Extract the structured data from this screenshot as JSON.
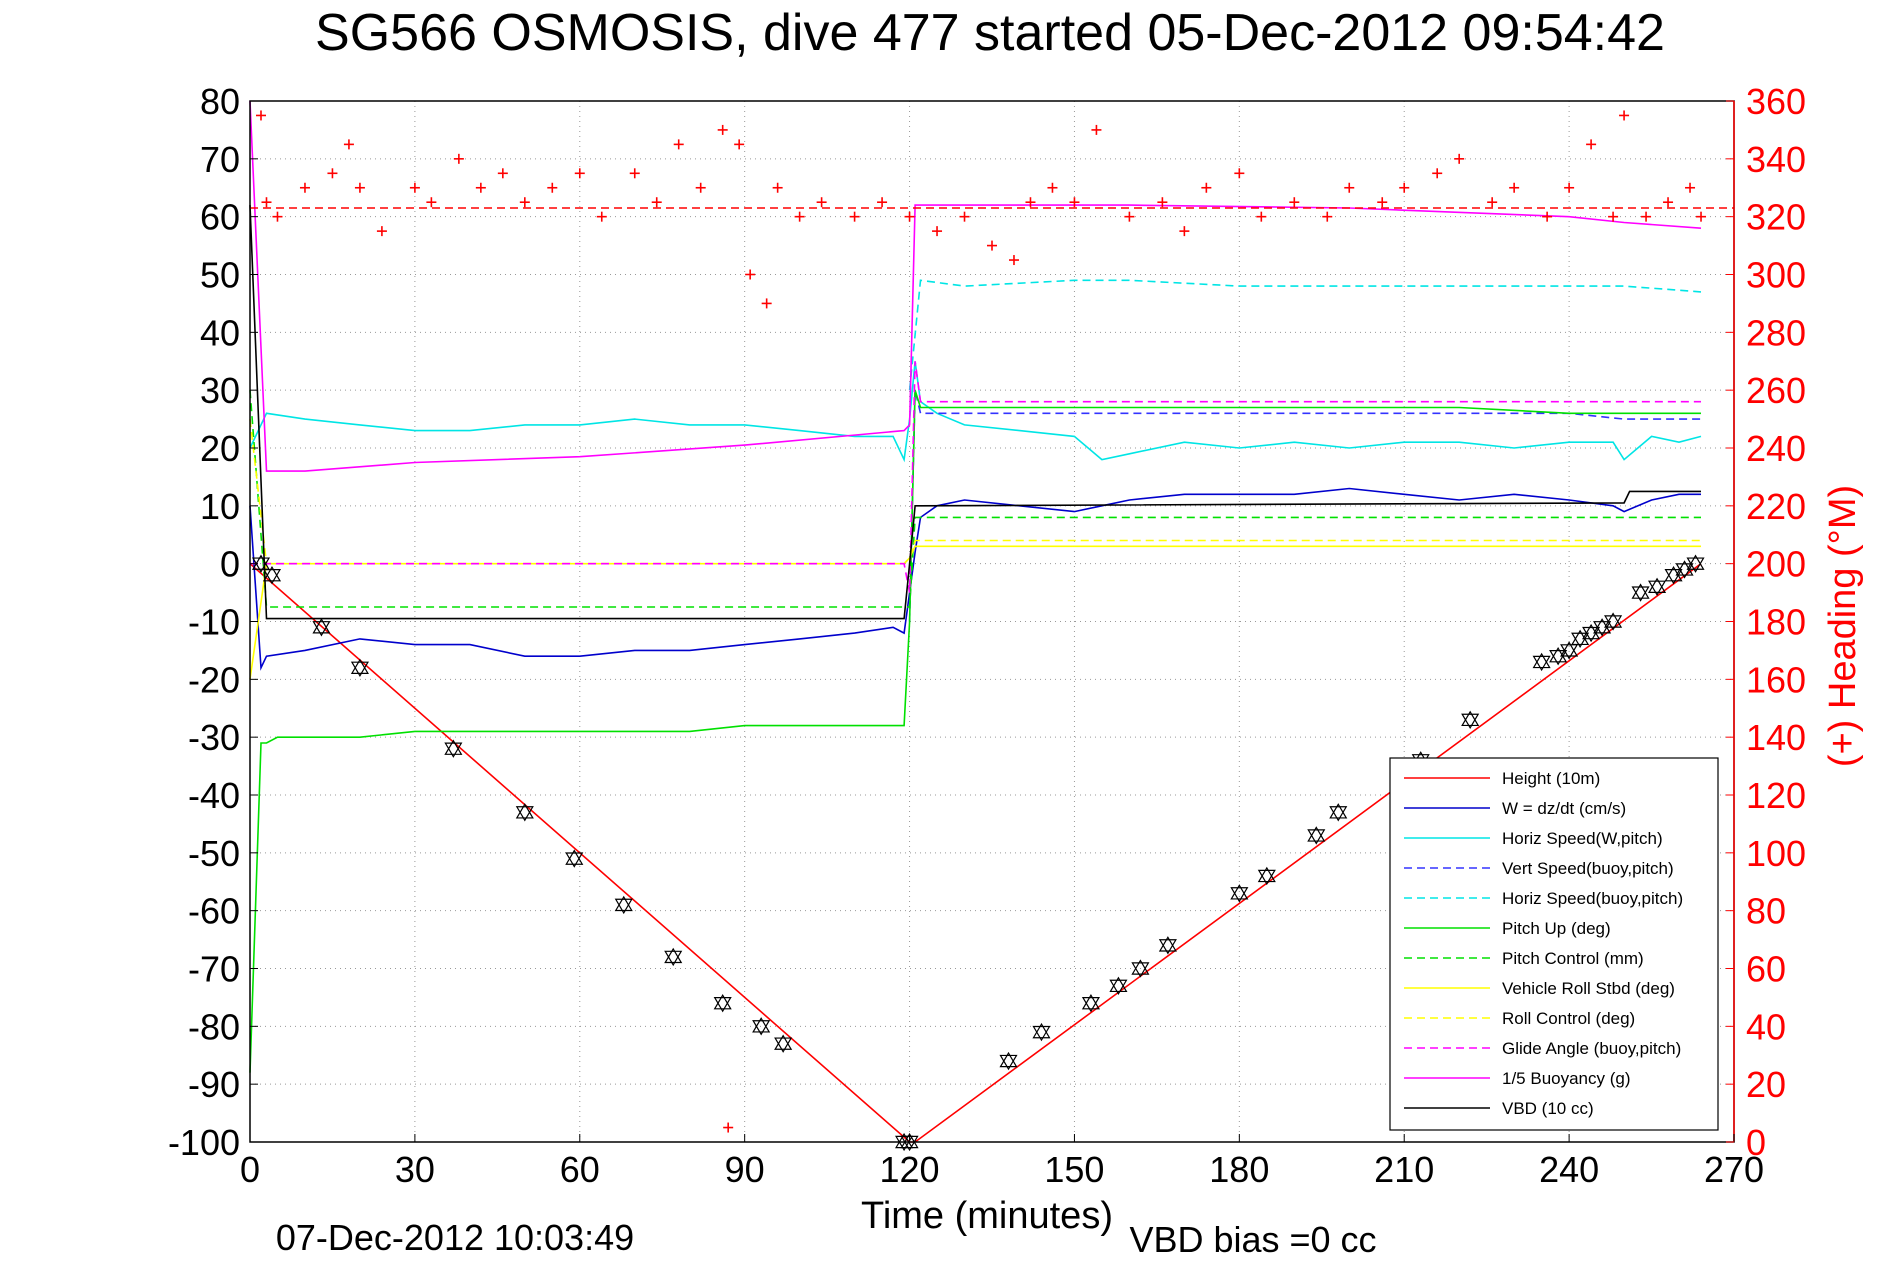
{
  "chart_data": {
    "type": "line",
    "title": "SG566 OSMOSIS, dive 477 started 05-Dec-2012 09:54:42",
    "xlabel": "Time (minutes)",
    "ylabel_right": "(+) Heading (°M)",
    "footer_left": "07-Dec-2012 10:03:49",
    "footer_right": "VBD bias =0 cc",
    "xlim": [
      0,
      270
    ],
    "ylim": [
      -100,
      80
    ],
    "ylim_right": [
      0,
      360
    ],
    "x_ticks": [
      0,
      30,
      60,
      90,
      120,
      150,
      180,
      210,
      240,
      270
    ],
    "y_ticks": [
      -100,
      -90,
      -80,
      -70,
      -60,
      -50,
      -40,
      -30,
      -20,
      -10,
      0,
      10,
      20,
      30,
      40,
      50,
      60,
      70,
      80
    ],
    "y_ticks_right": [
      0,
      20,
      40,
      60,
      80,
      100,
      120,
      140,
      160,
      180,
      200,
      220,
      240,
      260,
      280,
      300,
      320,
      340,
      360
    ],
    "grid": true,
    "legend_position": "bottom-right",
    "colors": {
      "red": "#ff0000",
      "blue": "#0000cc",
      "cyan": "#00e5e5",
      "green": "#00e000",
      "yellow": "#ffff00",
      "magenta": "#ff00ff",
      "black": "#000000"
    },
    "series": [
      {
        "name": "Height (10m)",
        "color": "#ff0000",
        "dash": false,
        "x": [
          0,
          120,
          121,
          264
        ],
        "y": [
          0,
          -100,
          -100,
          0
        ]
      },
      {
        "name": "W = dz/dt (cm/s)",
        "color": "#0000cc",
        "dash": false,
        "x": [
          0,
          2,
          3,
          10,
          20,
          30,
          40,
          50,
          60,
          70,
          80,
          90,
          100,
          110,
          117,
          119,
          120,
          121,
          122,
          125,
          130,
          140,
          150,
          155,
          160,
          170,
          180,
          190,
          200,
          210,
          220,
          230,
          240,
          248,
          250,
          255,
          260,
          264
        ],
        "y": [
          10,
          -18,
          -16,
          -15,
          -13,
          -14,
          -14,
          -16,
          -16,
          -15,
          -15,
          -14,
          -13,
          -12,
          -11,
          -12,
          -5,
          2,
          8,
          10,
          11,
          10,
          9,
          10,
          11,
          12,
          12,
          12,
          13,
          12,
          11,
          12,
          11,
          10,
          9,
          11,
          12,
          12
        ]
      },
      {
        "name": "Horiz Speed(W,pitch)",
        "color": "#00e5e5",
        "dash": false,
        "x": [
          0,
          3,
          10,
          20,
          30,
          40,
          50,
          60,
          70,
          80,
          90,
          100,
          110,
          117,
          119,
          120,
          121,
          122,
          125,
          130,
          140,
          150,
          155,
          160,
          170,
          180,
          190,
          200,
          210,
          220,
          230,
          240,
          248,
          250,
          255,
          260,
          264
        ],
        "y": [
          20,
          26,
          25,
          24,
          23,
          23,
          24,
          24,
          25,
          24,
          24,
          23,
          22,
          22,
          18,
          25,
          35,
          28,
          26,
          24,
          23,
          22,
          18,
          19,
          21,
          20,
          21,
          20,
          21,
          21,
          20,
          21,
          21,
          18,
          22,
          21,
          22
        ]
      },
      {
        "name": "Vert Speed(buoy,pitch)",
        "color": "#3333ff",
        "dash": true,
        "x": [
          120,
          121,
          122,
          130,
          150,
          160,
          180,
          200,
          220,
          240,
          250,
          255,
          264
        ],
        "y": [
          -10,
          30,
          26,
          26,
          26,
          26,
          26,
          26,
          26,
          26,
          25,
          25,
          25
        ]
      },
      {
        "name": "Horiz Speed(buoy,pitch)",
        "color": "#00e5e5",
        "dash": true,
        "x": [
          120,
          122,
          130,
          150,
          160,
          180,
          200,
          220,
          240,
          250,
          264
        ],
        "y": [
          30,
          49,
          48,
          49,
          49,
          48,
          48,
          48,
          48,
          48,
          47
        ]
      },
      {
        "name": "Pitch Up (deg)",
        "color": "#00e000",
        "dash": false,
        "x": [
          0,
          2,
          3,
          5,
          10,
          20,
          30,
          40,
          50,
          60,
          70,
          80,
          90,
          100,
          110,
          119,
          120,
          121,
          122,
          125,
          140,
          160,
          180,
          200,
          220,
          240,
          250,
          260,
          264
        ],
        "y": [
          -88,
          -31,
          -31,
          -30,
          -30,
          -30,
          -29,
          -29,
          -29,
          -29,
          -29,
          -29,
          -28,
          -28,
          -28,
          -28,
          -10,
          30,
          27,
          27,
          27,
          27,
          27,
          27,
          27,
          26,
          26,
          26,
          26
        ]
      },
      {
        "name": "Pitch Control (mm)",
        "color": "#00e000",
        "dash": true,
        "x": [
          0,
          3,
          119,
          120,
          121,
          264
        ],
        "y": [
          30,
          -7.5,
          -7.5,
          -7.5,
          8,
          8
        ]
      },
      {
        "name": "Vehicle Roll Stbd (deg)",
        "color": "#ffff00",
        "dash": false,
        "x": [
          0,
          3,
          119,
          120,
          121,
          264
        ],
        "y": [
          -20,
          0,
          0,
          1,
          3,
          3
        ]
      },
      {
        "name": "Roll Control (deg)",
        "color": "#ffff00",
        "dash": true,
        "x": [
          0,
          3,
          119,
          120,
          121,
          264
        ],
        "y": [
          25,
          0,
          0,
          1,
          4,
          4
        ]
      },
      {
        "name": "Glide Angle (buoy,pitch)",
        "color": "#ff00ff",
        "dash": true,
        "x": [
          0,
          3,
          119,
          120,
          121,
          122,
          264
        ],
        "y": [
          0,
          0,
          0,
          -5,
          35,
          28,
          28
        ]
      },
      {
        "name": "1/5 Buoyancy (g)",
        "color": "#ff00ff",
        "dash": false,
        "x": [
          0,
          3,
          10,
          30,
          60,
          90,
          119,
          120,
          121,
          130,
          160,
          200,
          240,
          250,
          264
        ],
        "y": [
          80,
          16,
          16,
          17.5,
          18.5,
          20.5,
          23,
          24,
          62,
          62,
          62,
          61.5,
          60,
          59,
          58
        ]
      },
      {
        "name": "VBD (10 cc)",
        "color": "#000000",
        "dash": false,
        "x": [
          0,
          3,
          119,
          120,
          121,
          122,
          250,
          251,
          264
        ],
        "y": [
          62,
          -9.5,
          -9.5,
          0,
          10,
          10,
          10.5,
          12.5,
          12.5
        ]
      }
    ],
    "heading": {
      "name": "(+) Heading (°M)",
      "color": "#ff0000",
      "mean": 323,
      "x": [
        2,
        3,
        5,
        10,
        15,
        18,
        20,
        24,
        30,
        33,
        38,
        42,
        46,
        50,
        55,
        60,
        64,
        70,
        74,
        78,
        82,
        86,
        87,
        89,
        91,
        94,
        96,
        100,
        104,
        110,
        115,
        120,
        125,
        130,
        135,
        139,
        142,
        146,
        150,
        154,
        160,
        166,
        170,
        174,
        180,
        184,
        190,
        196,
        200,
        206,
        210,
        216,
        220,
        226,
        230,
        236,
        240,
        244,
        248,
        250,
        254,
        258,
        262,
        264
      ],
      "y": [
        355,
        325,
        320,
        330,
        335,
        345,
        330,
        315,
        330,
        325,
        340,
        330,
        335,
        325,
        330,
        335,
        320,
        335,
        325,
        345,
        330,
        350,
        5,
        345,
        300,
        290,
        330,
        320,
        325,
        320,
        325,
        320,
        315,
        320,
        310,
        305,
        325,
        330,
        325,
        350,
        320,
        325,
        315,
        330,
        335,
        320,
        325,
        320,
        330,
        325,
        330,
        335,
        340,
        325,
        330,
        320,
        330,
        345,
        320,
        355,
        320,
        325,
        330,
        320
      ]
    },
    "markers": {
      "name": "triangle markers",
      "color": "#000000",
      "x": [
        2,
        4,
        13,
        20,
        37,
        50,
        59,
        68,
        77,
        86,
        93,
        97,
        119,
        120,
        138,
        144,
        153,
        158,
        162,
        167,
        180,
        185,
        194,
        198,
        213,
        222,
        235,
        238,
        240,
        242,
        244,
        246,
        248,
        253,
        256,
        259,
        261,
        263
      ],
      "y": [
        0,
        -2,
        -11,
        -18,
        -32,
        -43,
        -51,
        -59,
        -68,
        -76,
        -80,
        -83,
        -100,
        -100,
        -86,
        -81,
        -76,
        -73,
        -70,
        -66,
        -57,
        -54,
        -47,
        -43,
        -34,
        -27,
        -17,
        -16,
        -15,
        -13,
        -12,
        -11,
        -10,
        -5,
        -4,
        -2,
        -1,
        0
      ]
    }
  }
}
